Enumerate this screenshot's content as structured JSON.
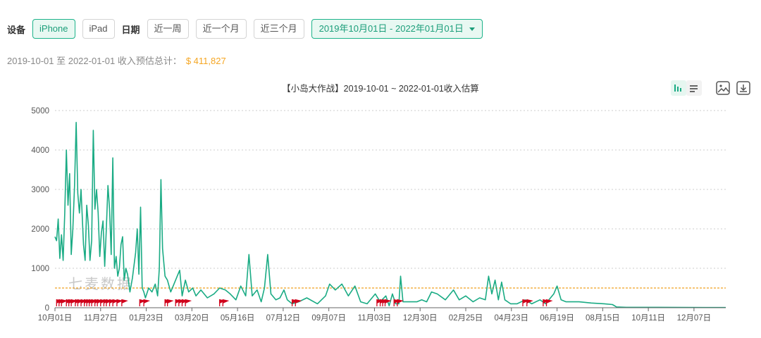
{
  "filters": {
    "device_label": "设备",
    "device_options": [
      {
        "label": "iPhone",
        "active": true
      },
      {
        "label": "iPad",
        "active": false
      }
    ],
    "date_label": "日期",
    "date_options": [
      {
        "label": "近一周"
      },
      {
        "label": "近一个月"
      },
      {
        "label": "近三个月"
      }
    ],
    "date_range": "2019年10月01日 - 2022年01月01日"
  },
  "summary": {
    "text": "2019-10-01 至 2022-01-01 收入预估总计：",
    "amount": "$ 411,827"
  },
  "toolbox": {
    "icons": [
      "bar-chart-icon",
      "list-icon",
      "save-image-icon",
      "download-icon"
    ]
  },
  "colors": {
    "line": "#1aab84",
    "avg_line": "#f0a020",
    "marker": "#d0021b",
    "grid": "#cccccc",
    "accent": "#1db38a"
  },
  "watermark": "七麦数据",
  "chart_data": {
    "type": "line",
    "title": "【小岛大作战】2019-10-01 ~ 2022-01-01收入估算",
    "x_tick_labels": [
      "10月01日",
      "11月27日",
      "01月23日",
      "03月20日",
      "05月16日",
      "07月12日",
      "09月07日",
      "11月03日",
      "12月30日",
      "02月25日",
      "04月23日",
      "06月19日",
      "08月15日",
      "10月11日",
      "12月07日"
    ],
    "y_ticks": [
      0,
      1000,
      2000,
      3000,
      4000,
      5000
    ],
    "ylim": [
      0,
      5000
    ],
    "grid": true,
    "reference_line_value": 500,
    "series": [
      {
        "points": [
          [
            "2019-10-01",
            1800
          ],
          [
            "2019-10-03",
            1700
          ],
          [
            "2019-10-05",
            2250
          ],
          [
            "2019-10-07",
            1250
          ],
          [
            "2019-10-09",
            1850
          ],
          [
            "2019-10-11",
            1200
          ],
          [
            "2019-10-13",
            2400
          ],
          [
            "2019-10-15",
            4000
          ],
          [
            "2019-10-17",
            2600
          ],
          [
            "2019-10-19",
            3400
          ],
          [
            "2019-10-21",
            1350
          ],
          [
            "2019-10-23",
            2000
          ],
          [
            "2019-10-25",
            3100
          ],
          [
            "2019-10-27",
            4700
          ],
          [
            "2019-10-29",
            2900
          ],
          [
            "2019-10-31",
            2400
          ],
          [
            "2019-11-02",
            3000
          ],
          [
            "2019-11-05",
            1600
          ],
          [
            "2019-11-07",
            1200
          ],
          [
            "2019-11-09",
            2600
          ],
          [
            "2019-11-11",
            2100
          ],
          [
            "2019-11-13",
            1200
          ],
          [
            "2019-11-15",
            1700
          ],
          [
            "2019-11-17",
            4500
          ],
          [
            "2019-11-19",
            2500
          ],
          [
            "2019-11-21",
            3000
          ],
          [
            "2019-11-23",
            2400
          ],
          [
            "2019-11-25",
            1300
          ],
          [
            "2019-11-27",
            1900
          ],
          [
            "2019-11-29",
            2200
          ],
          [
            "2019-12-01",
            1050
          ],
          [
            "2019-12-03",
            2000
          ],
          [
            "2019-12-05",
            3100
          ],
          [
            "2019-12-07",
            2500
          ],
          [
            "2019-12-09",
            1350
          ],
          [
            "2019-12-11",
            3800
          ],
          [
            "2019-12-13",
            1000
          ],
          [
            "2019-12-15",
            1300
          ],
          [
            "2019-12-17",
            800
          ],
          [
            "2019-12-19",
            1000
          ],
          [
            "2019-12-21",
            1600
          ],
          [
            "2019-12-23",
            1800
          ],
          [
            "2019-12-25",
            700
          ],
          [
            "2019-12-27",
            1000
          ],
          [
            "2019-12-29",
            850
          ],
          [
            "2020-01-01",
            400
          ],
          [
            "2020-01-04",
            750
          ],
          [
            "2020-01-08",
            1400
          ],
          [
            "2020-01-10",
            2000
          ],
          [
            "2020-01-12",
            850
          ],
          [
            "2020-01-14",
            2550
          ],
          [
            "2020-01-16",
            500
          ],
          [
            "2020-01-18",
            400
          ],
          [
            "2020-01-20",
            250
          ],
          [
            "2020-01-24",
            500
          ],
          [
            "2020-01-28",
            400
          ],
          [
            "2020-02-01",
            600
          ],
          [
            "2020-02-04",
            300
          ],
          [
            "2020-02-06",
            1000
          ],
          [
            "2020-02-08",
            3250
          ],
          [
            "2020-02-10",
            1500
          ],
          [
            "2020-02-13",
            800
          ],
          [
            "2020-02-16",
            700
          ],
          [
            "2020-02-20",
            400
          ],
          [
            "2020-02-24",
            600
          ],
          [
            "2020-02-28",
            800
          ],
          [
            "2020-03-02",
            950
          ],
          [
            "2020-03-05",
            300
          ],
          [
            "2020-03-09",
            700
          ],
          [
            "2020-03-13",
            400
          ],
          [
            "2020-03-18",
            500
          ],
          [
            "2020-03-22",
            300
          ],
          [
            "2020-03-28",
            450
          ],
          [
            "2020-04-05",
            250
          ],
          [
            "2020-04-13",
            350
          ],
          [
            "2020-04-20",
            500
          ],
          [
            "2020-04-27",
            450
          ],
          [
            "2020-05-03",
            350
          ],
          [
            "2020-05-10",
            200
          ],
          [
            "2020-05-16",
            550
          ],
          [
            "2020-05-22",
            300
          ],
          [
            "2020-05-26",
            1350
          ],
          [
            "2020-05-30",
            300
          ],
          [
            "2020-06-05",
            450
          ],
          [
            "2020-06-10",
            150
          ],
          [
            "2020-06-14",
            500
          ],
          [
            "2020-06-18",
            1350
          ],
          [
            "2020-06-22",
            350
          ],
          [
            "2020-06-28",
            200
          ],
          [
            "2020-07-03",
            250
          ],
          [
            "2020-07-08",
            450
          ],
          [
            "2020-07-12",
            200
          ],
          [
            "2020-07-18",
            100
          ],
          [
            "2020-07-26",
            150
          ],
          [
            "2020-08-05",
            250
          ],
          [
            "2020-08-18",
            100
          ],
          [
            "2020-08-28",
            300
          ],
          [
            "2020-09-02",
            600
          ],
          [
            "2020-09-09",
            450
          ],
          [
            "2020-09-17",
            600
          ],
          [
            "2020-09-25",
            300
          ],
          [
            "2020-10-03",
            550
          ],
          [
            "2020-10-10",
            150
          ],
          [
            "2020-10-18",
            100
          ],
          [
            "2020-10-28",
            350
          ],
          [
            "2020-11-03",
            150
          ],
          [
            "2020-11-10",
            300
          ],
          [
            "2020-11-14",
            50
          ],
          [
            "2020-11-18",
            350
          ],
          [
            "2020-11-22",
            100
          ],
          [
            "2020-11-26",
            100
          ],
          [
            "2020-11-28",
            800
          ],
          [
            "2020-12-01",
            150
          ],
          [
            "2020-12-08",
            150
          ],
          [
            "2020-12-18",
            150
          ],
          [
            "2020-12-24",
            200
          ],
          [
            "2020-12-30",
            150
          ],
          [
            "2021-01-05",
            400
          ],
          [
            "2021-01-12",
            350
          ],
          [
            "2021-01-22",
            200
          ],
          [
            "2021-02-01",
            450
          ],
          [
            "2021-02-08",
            200
          ],
          [
            "2021-02-16",
            300
          ],
          [
            "2021-02-25",
            150
          ],
          [
            "2021-03-05",
            250
          ],
          [
            "2021-03-12",
            200
          ],
          [
            "2021-03-16",
            800
          ],
          [
            "2021-03-20",
            350
          ],
          [
            "2021-03-24",
            700
          ],
          [
            "2021-03-28",
            200
          ],
          [
            "2021-04-01",
            650
          ],
          [
            "2021-04-05",
            200
          ],
          [
            "2021-04-12",
            100
          ],
          [
            "2021-04-20",
            100
          ],
          [
            "2021-04-30",
            200
          ],
          [
            "2021-05-08",
            100
          ],
          [
            "2021-05-18",
            200
          ],
          [
            "2021-05-25",
            100
          ],
          [
            "2021-06-04",
            350
          ],
          [
            "2021-06-08",
            550
          ],
          [
            "2021-06-13",
            200
          ],
          [
            "2021-06-19",
            150
          ],
          [
            "2021-07-05",
            150
          ],
          [
            "2021-07-20",
            120
          ],
          [
            "2021-08-05",
            100
          ],
          [
            "2021-08-15",
            80
          ],
          [
            "2021-08-20",
            20
          ],
          [
            "2021-09-01",
            10
          ],
          [
            "2021-10-11",
            10
          ],
          [
            "2021-12-07",
            5
          ],
          [
            "2022-01-01",
            5
          ]
        ]
      }
    ],
    "markers": [
      "2019-10-03",
      "2019-10-06",
      "2019-10-09",
      "2019-10-15",
      "2019-10-18",
      "2019-10-21",
      "2019-10-26",
      "2019-10-29",
      "2019-11-02",
      "2019-11-06",
      "2019-11-09",
      "2019-11-12",
      "2019-11-15",
      "2019-11-19",
      "2019-11-22",
      "2019-11-26",
      "2019-11-30",
      "2019-12-03",
      "2019-12-07",
      "2019-12-11",
      "2019-12-16",
      "2019-12-22",
      "2020-01-13",
      "2020-01-18",
      "2020-02-13",
      "2020-02-16",
      "2020-02-26",
      "2020-03-01",
      "2020-03-05",
      "2020-03-09",
      "2020-04-20",
      "2020-04-24",
      "2020-07-18",
      "2020-07-22",
      "2020-10-30",
      "2020-11-03",
      "2020-11-06",
      "2020-11-09",
      "2020-11-20",
      "2020-11-24",
      "2021-04-27",
      "2021-05-02",
      "2021-05-22",
      "2021-05-26"
    ]
  }
}
